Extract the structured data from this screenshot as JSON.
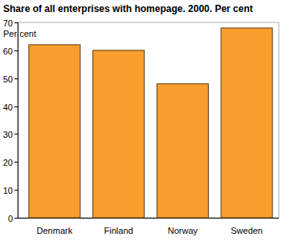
{
  "chart_data": {
    "type": "bar",
    "title": "Share of all enterprises with homepage. 2000. Per cent",
    "y_label": "Per cent",
    "categories": [
      "Denmark",
      "Finland",
      "Norway",
      "Sweden"
    ],
    "values": [
      62,
      60,
      48,
      68
    ],
    "color": "#f99d2c",
    "ylim": [
      0,
      70
    ],
    "yticks": [
      0,
      10,
      20,
      30,
      40,
      50,
      60,
      70
    ],
    "grid": false
  }
}
